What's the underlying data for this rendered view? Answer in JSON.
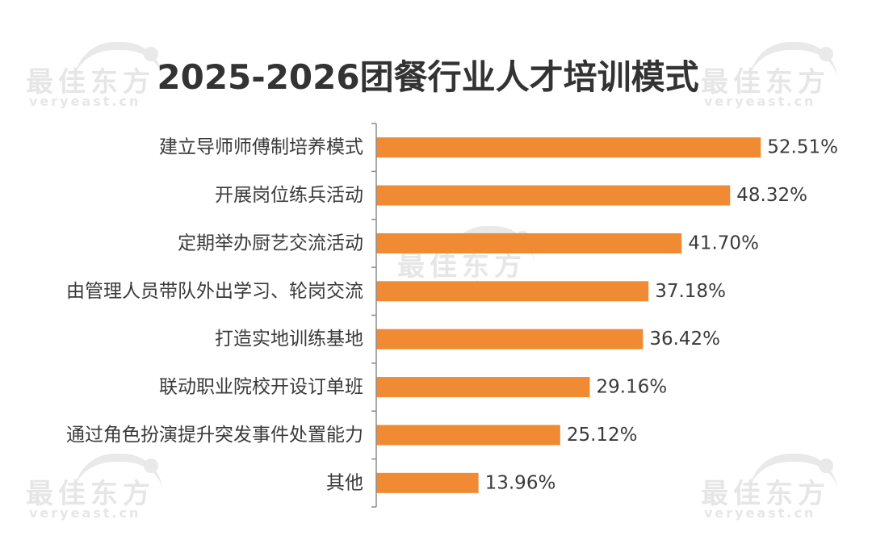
{
  "watermark": {
    "cn": "最佳东方",
    "en": "veryeast.cn"
  },
  "colors": {
    "bar": "#F08A33",
    "axis": "#8C8C8C",
    "text": "#3A3A3A"
  },
  "chart_data": {
    "type": "bar",
    "orientation": "horizontal",
    "title": "2025-2026团餐行业人才培训模式",
    "categories": [
      "建立导师师傅制培养模式",
      "开展岗位练兵活动",
      "定期举办厨艺交流活动",
      "由管理人员带队外出学习、轮岗交流",
      "打造实地训练基地",
      "联动职业院校开设订单班",
      "通过角色扮演提升突发事件处置能力",
      "其他"
    ],
    "values": [
      52.51,
      48.32,
      41.7,
      37.18,
      36.42,
      29.16,
      25.12,
      13.96
    ],
    "value_labels": [
      "52.51%",
      "48.32%",
      "41.70%",
      "37.18%",
      "36.42%",
      "29.16%",
      "25.12%",
      "13.96%"
    ],
    "xlim": [
      0,
      60
    ],
    "grid": false,
    "legend": "none"
  }
}
